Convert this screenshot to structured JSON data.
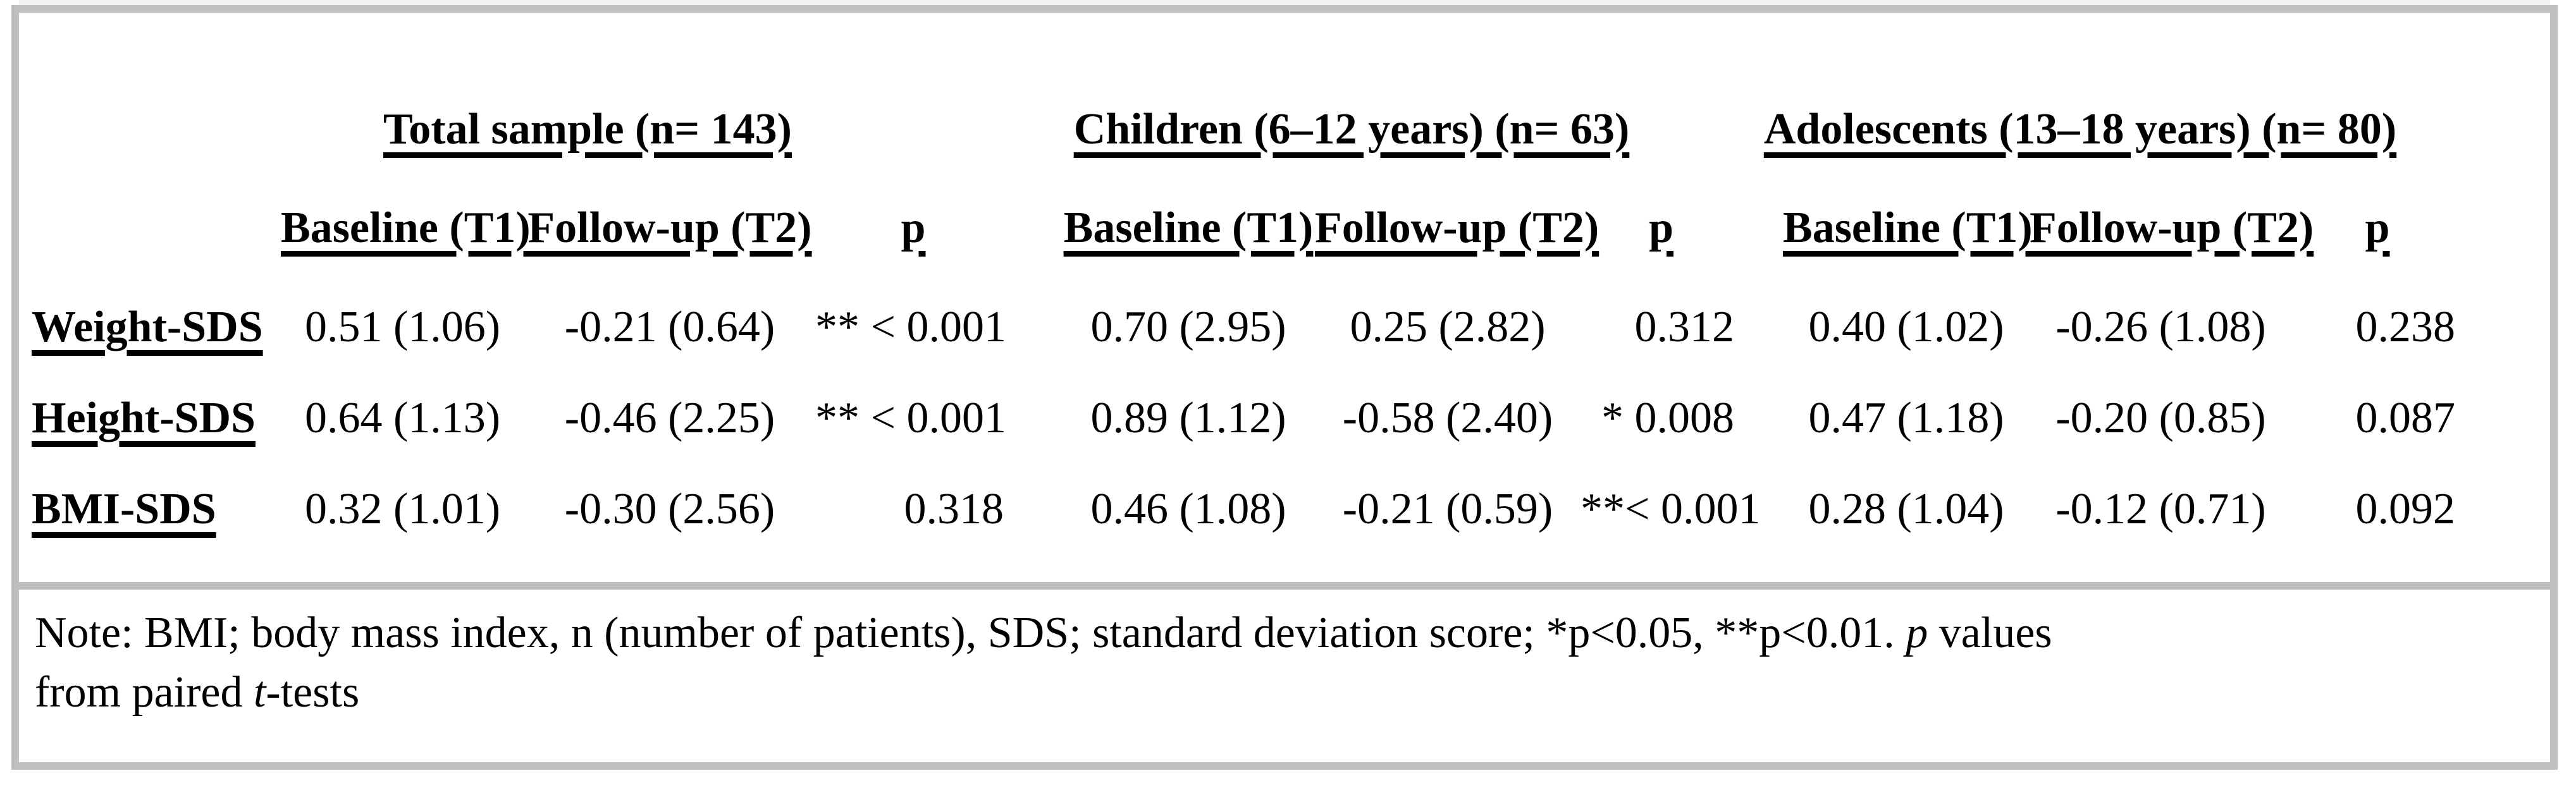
{
  "colors": {
    "border_gray": "#bfbfbf",
    "text": "#000000",
    "background": "#ffffff",
    "top_strip": "#f1f1f1"
  },
  "table": {
    "groups": [
      {
        "label": "Total sample (n= 143)",
        "columns": {
          "baseline": "Baseline (T1)",
          "followup": "Follow-up (T2)",
          "p": "p"
        }
      },
      {
        "label": "Children (6–12 years) (n= 63)",
        "columns": {
          "baseline": "Baseline (T1)",
          "followup": "Follow-up (T2)",
          "p": "p"
        }
      },
      {
        "label": "Adolescents (13–18 years) (n= 80)",
        "columns": {
          "baseline": "Baseline (T1)",
          "followup": "Follow-up (T2)",
          "p": "p"
        }
      }
    ],
    "rows": [
      {
        "label": "Weight-SDS",
        "total": {
          "baseline": "0.51 (1.06)",
          "followup": "-0.21 (0.64)",
          "p": "** < 0.001"
        },
        "children": {
          "baseline": "0.70 (2.95)",
          "followup": "0.25 (2.82)",
          "p": "0.312"
        },
        "adolescents": {
          "baseline": "0.40 (1.02)",
          "followup": "-0.26 (1.08)",
          "p": "0.238"
        }
      },
      {
        "label": "Height-SDS",
        "total": {
          "baseline": "0.64 (1.13)",
          "followup": "-0.46 (2.25)",
          "p": "** < 0.001"
        },
        "children": {
          "baseline": "0.89 (1.12)",
          "followup": "-0.58 (2.40)",
          "p": "* 0.008"
        },
        "adolescents": {
          "baseline": "0.47 (1.18)",
          "followup": "-0.20 (0.85)",
          "p": "0.087"
        }
      },
      {
        "label": "BMI-SDS",
        "total": {
          "baseline": "0.32 (1.01)",
          "followup": "-0.30 (2.56)",
          "p": "0.318"
        },
        "children": {
          "baseline": "0.46 (1.08)",
          "followup": "-0.21 (0.59)",
          "p": "**< 0.001"
        },
        "adolescents": {
          "baseline": "0.28 (1.04)",
          "followup": "-0.12 (0.71)",
          "p": "0.092"
        }
      }
    ],
    "note": {
      "part1": "Note: BMI; body mass index, n (number of patients), SDS; standard deviation score; *p<0.05, **p<0.01. ",
      "italic_p": "p",
      "part2": " values",
      "part3": "from paired ",
      "italic_t": "t",
      "part4": "-tests"
    }
  }
}
